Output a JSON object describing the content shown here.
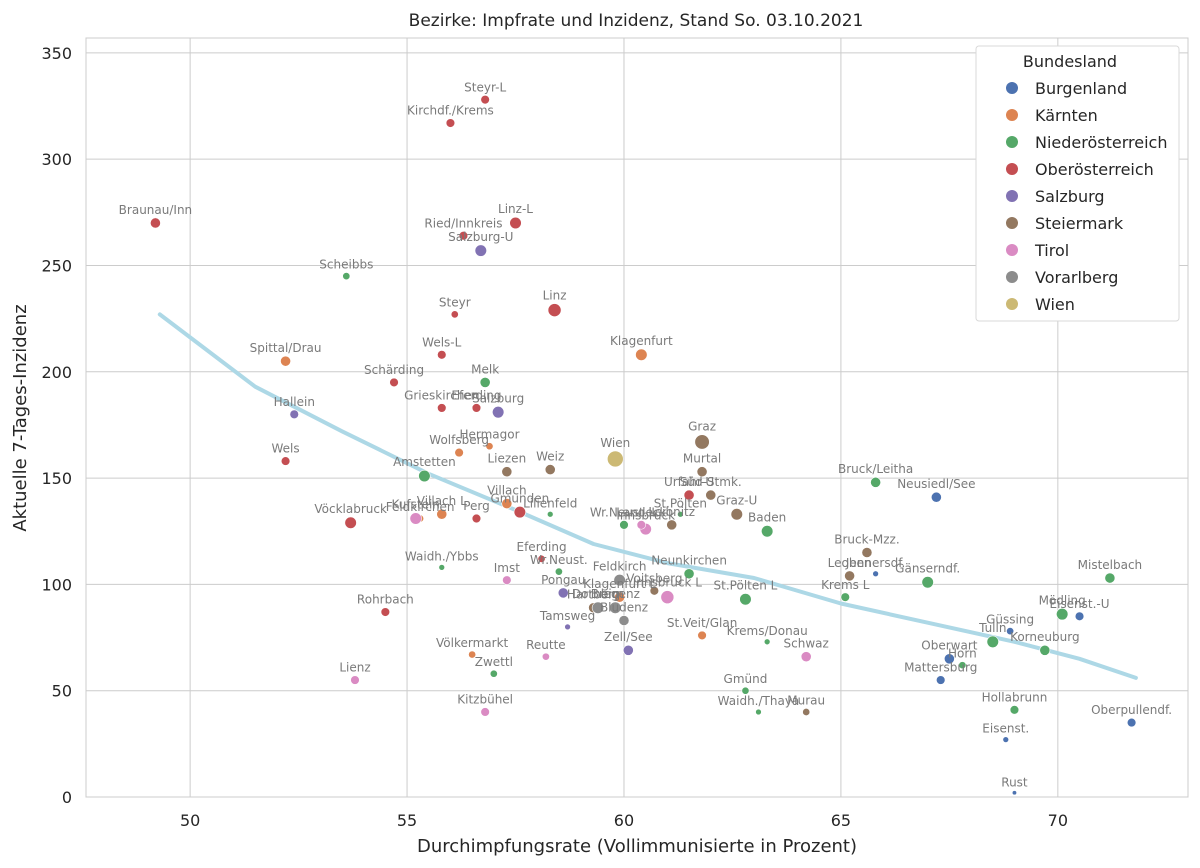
{
  "chart_data": {
    "type": "scatter",
    "title": "Bezirke: Impfrate und Inzidenz, Stand So. 03.10.2021",
    "xlabel": "Durchimpfungsrate (Vollimmunisierte in Prozent)",
    "ylabel": "Aktuelle 7-Tages-Inzidenz",
    "xlim": [
      47.6,
      73.0
    ],
    "ylim": [
      0,
      357
    ],
    "xticks": [
      50,
      55,
      60,
      65,
      70
    ],
    "yticks": [
      0,
      50,
      100,
      150,
      200,
      250,
      300,
      350
    ],
    "grid": true,
    "legend": {
      "title": "Bundesland",
      "placement": "top-right",
      "entries": [
        {
          "name": "Burgenland",
          "color": "#4c72b0"
        },
        {
          "name": "Kärnten",
          "color": "#dd8452"
        },
        {
          "name": "Niederösterreich",
          "color": "#55a868"
        },
        {
          "name": "Oberösterreich",
          "color": "#c44e52"
        },
        {
          "name": "Salzburg",
          "color": "#8172b3"
        },
        {
          "name": "Steiermark",
          "color": "#937860"
        },
        {
          "name": "Tirol",
          "color": "#da8bc3"
        },
        {
          "name": "Vorarlberg",
          "color": "#8c8c8c"
        },
        {
          "name": "Wien",
          "color": "#ccb974"
        }
      ]
    },
    "trend": {
      "color": "#add8e6",
      "points": [
        [
          49.3,
          227
        ],
        [
          51.5,
          193
        ],
        [
          53.5,
          172
        ],
        [
          55.5,
          152
        ],
        [
          57.5,
          135
        ],
        [
          59.3,
          119
        ],
        [
          61.0,
          110
        ],
        [
          63.0,
          103
        ],
        [
          65.0,
          91
        ],
        [
          67.0,
          82
        ],
        [
          69.0,
          73
        ],
        [
          70.5,
          65
        ],
        [
          71.8,
          56
        ]
      ]
    },
    "series": [
      {
        "name": "Burgenland",
        "color": "#4c72b0",
        "points": [
          {
            "label": "Neusiedl/See",
            "x": 67.2,
            "y": 141,
            "size": 5
          },
          {
            "label": "Oberwart",
            "x": 67.5,
            "y": 65,
            "size": 5
          },
          {
            "label": "Mattersburg",
            "x": 67.3,
            "y": 55,
            "size": 4
          },
          {
            "label": "Güssing",
            "x": 68.9,
            "y": 78,
            "size": 3
          },
          {
            "label": "Eisenst.-U",
            "x": 70.5,
            "y": 85,
            "size": 4
          },
          {
            "label": "Oberpullendf.",
            "x": 71.7,
            "y": 35,
            "size": 4
          },
          {
            "label": "Eisenst.",
            "x": 68.8,
            "y": 27,
            "size": 2
          },
          {
            "label": "Rust",
            "x": 69.0,
            "y": 2,
            "size": 1
          },
          {
            "label": "Jennersdf.",
            "x": 65.8,
            "y": 105,
            "size": 2
          }
        ]
      },
      {
        "name": "Kärnten",
        "color": "#dd8452",
        "points": [
          {
            "label": "Spittal/Drau",
            "x": 52.2,
            "y": 205,
            "size": 5
          },
          {
            "label": "Klagenfurt",
            "x": 60.4,
            "y": 208,
            "size": 6
          },
          {
            "label": "Hermagor",
            "x": 56.9,
            "y": 165,
            "size": 3
          },
          {
            "label": "Wolfsberg",
            "x": 56.2,
            "y": 162,
            "size": 4
          },
          {
            "label": "Villach L",
            "x": 55.8,
            "y": 133,
            "size": 5
          },
          {
            "label": "Villach",
            "x": 57.3,
            "y": 138,
            "size": 5
          },
          {
            "label": "Feldkirchen",
            "x": 55.3,
            "y": 131,
            "size": 3
          },
          {
            "label": "Klagenfurt L",
            "x": 59.9,
            "y": 94,
            "size": 5
          },
          {
            "label": "St.Veit/Glan",
            "x": 61.8,
            "y": 76,
            "size": 4
          },
          {
            "label": "Völkermarkt",
            "x": 56.5,
            "y": 67,
            "size": 3
          }
        ]
      },
      {
        "name": "Niederösterreich",
        "color": "#55a868",
        "points": [
          {
            "label": "Scheibbs",
            "x": 53.6,
            "y": 245,
            "size": 3
          },
          {
            "label": "Melk",
            "x": 56.8,
            "y": 195,
            "size": 5
          },
          {
            "label": "Amstetten",
            "x": 55.4,
            "y": 151,
            "size": 6
          },
          {
            "label": "Lilienfeld",
            "x": 58.3,
            "y": 133,
            "size": 2
          },
          {
            "label": "Waidh./Ybbs",
            "x": 55.8,
            "y": 108,
            "size": 2
          },
          {
            "label": "Wr.Neust.",
            "x": 58.5,
            "y": 106,
            "size": 3
          },
          {
            "label": "Zwettl",
            "x": 57.0,
            "y": 58,
            "size": 3
          },
          {
            "label": "Bruck/Leitha",
            "x": 65.8,
            "y": 148,
            "size": 5
          },
          {
            "label": "Neunkirchen",
            "x": 61.5,
            "y": 105,
            "size": 5
          },
          {
            "label": "Wr.Neust. L",
            "x": 60.0,
            "y": 128,
            "size": 4
          },
          {
            "label": "St.Pölten",
            "x": 61.3,
            "y": 133,
            "size": 2
          },
          {
            "label": "Baden",
            "x": 63.3,
            "y": 125,
            "size": 6
          },
          {
            "label": "St.Pölten L",
            "x": 62.8,
            "y": 93,
            "size": 6
          },
          {
            "label": "Krems/Donau",
            "x": 63.3,
            "y": 73,
            "size": 2
          },
          {
            "label": "Krems L",
            "x": 65.1,
            "y": 94,
            "size": 4
          },
          {
            "label": "Gänserndf.",
            "x": 67.0,
            "y": 101,
            "size": 6
          },
          {
            "label": "Tulln",
            "x": 68.5,
            "y": 73,
            "size": 6
          },
          {
            "label": "Mödling",
            "x": 70.1,
            "y": 86,
            "size": 6
          },
          {
            "label": "Korneuburg",
            "x": 69.7,
            "y": 69,
            "size": 5
          },
          {
            "label": "Mistelbach",
            "x": 71.2,
            "y": 103,
            "size": 5
          },
          {
            "label": "Hollabrunn",
            "x": 69.0,
            "y": 41,
            "size": 4
          },
          {
            "label": "Horn",
            "x": 67.8,
            "y": 62,
            "size": 3
          },
          {
            "label": "Gmünd",
            "x": 62.8,
            "y": 50,
            "size": 3
          },
          {
            "label": "Waidh./Thaya",
            "x": 63.1,
            "y": 40,
            "size": 2
          }
        ]
      },
      {
        "name": "Oberösterreich",
        "color": "#c44e52",
        "points": [
          {
            "label": "Braunau/Inn",
            "x": 49.2,
            "y": 270,
            "size": 5
          },
          {
            "label": "Steyr-L",
            "x": 56.8,
            "y": 328,
            "size": 4
          },
          {
            "label": "Kirchdf./Krems",
            "x": 56.0,
            "y": 317,
            "size": 4
          },
          {
            "label": "Linz-L",
            "x": 57.5,
            "y": 270,
            "size": 6
          },
          {
            "label": "Ried/Innkreis",
            "x": 56.3,
            "y": 264,
            "size": 4
          },
          {
            "label": "Linz",
            "x": 58.4,
            "y": 229,
            "size": 7
          },
          {
            "label": "Steyr",
            "x": 56.1,
            "y": 227,
            "size": 3
          },
          {
            "label": "Wels-L",
            "x": 55.8,
            "y": 208,
            "size": 4
          },
          {
            "label": "Schärding",
            "x": 54.7,
            "y": 195,
            "size": 4
          },
          {
            "label": "Grieskirchen",
            "x": 55.8,
            "y": 183,
            "size": 4
          },
          {
            "label": "Eferding",
            "x": 56.6,
            "y": 183,
            "size": 4
          },
          {
            "label": "Wels",
            "x": 52.2,
            "y": 158,
            "size": 4
          },
          {
            "label": "Vöcklabruck",
            "x": 53.7,
            "y": 129,
            "size": 6
          },
          {
            "label": "Perg",
            "x": 56.6,
            "y": 131,
            "size": 4
          },
          {
            "label": "Gmunden",
            "x": 57.6,
            "y": 134,
            "size": 6
          },
          {
            "label": "Urfahr-U",
            "x": 61.5,
            "y": 142,
            "size": 5
          },
          {
            "label": "Rohrbach",
            "x": 54.5,
            "y": 87,
            "size": 4
          },
          {
            "label": "Eferding",
            "x": 58.1,
            "y": 112,
            "size": 3
          }
        ]
      },
      {
        "name": "Salzburg",
        "color": "#8172b3",
        "points": [
          {
            "label": "Salzburg-U",
            "x": 56.7,
            "y": 257,
            "size": 6
          },
          {
            "label": "Salzburg",
            "x": 57.1,
            "y": 181,
            "size": 6
          },
          {
            "label": "Hallein",
            "x": 52.4,
            "y": 180,
            "size": 4
          },
          {
            "label": "Pongau",
            "x": 58.6,
            "y": 96,
            "size": 5
          },
          {
            "label": "Tamsweg",
            "x": 58.7,
            "y": 80,
            "size": 2
          },
          {
            "label": "Zell/See",
            "x": 60.1,
            "y": 69,
            "size": 5
          }
        ]
      },
      {
        "name": "Steiermark",
        "color": "#937860",
        "points": [
          {
            "label": "Graz",
            "x": 61.8,
            "y": 167,
            "size": 8
          },
          {
            "label": "Liezen",
            "x": 57.3,
            "y": 153,
            "size": 5
          },
          {
            "label": "Weiz",
            "x": 58.3,
            "y": 154,
            "size": 5
          },
          {
            "label": "Murtal",
            "x": 61.8,
            "y": 153,
            "size": 5
          },
          {
            "label": "Süd-Stmk.",
            "x": 62.0,
            "y": 142,
            "size": 5
          },
          {
            "label": "Graz-U",
            "x": 62.6,
            "y": 133,
            "size": 6
          },
          {
            "label": "Leibnitz",
            "x": 61.1,
            "y": 128,
            "size": 5
          },
          {
            "label": "Bruck-Mzz.",
            "x": 65.6,
            "y": 115,
            "size": 5
          },
          {
            "label": "Leoben",
            "x": 65.2,
            "y": 104,
            "size": 5
          },
          {
            "label": "Voitsberg",
            "x": 60.7,
            "y": 97,
            "size": 4
          },
          {
            "label": "Hartberg",
            "x": 59.3,
            "y": 89,
            "size": 5
          },
          {
            "label": "Murau",
            "x": 64.2,
            "y": 40,
            "size": 3
          }
        ]
      },
      {
        "name": "Tirol",
        "color": "#da8bc3",
        "points": [
          {
            "label": "Kufstein",
            "x": 55.2,
            "y": 131,
            "size": 6
          },
          {
            "label": "Innsbruck",
            "x": 60.5,
            "y": 126,
            "size": 6
          },
          {
            "label": "Innsbruck L",
            "x": 61.0,
            "y": 94,
            "size": 7
          },
          {
            "label": "Imst",
            "x": 57.3,
            "y": 102,
            "size": 4
          },
          {
            "label": "Schwaz",
            "x": 64.2,
            "y": 66,
            "size": 5
          },
          {
            "label": "Reutte",
            "x": 58.2,
            "y": 66,
            "size": 3
          },
          {
            "label": "Lienz",
            "x": 53.8,
            "y": 55,
            "size": 4
          },
          {
            "label": "Kitzbühel",
            "x": 56.8,
            "y": 40,
            "size": 4
          },
          {
            "label": "Landeck",
            "x": 60.4,
            "y": 128,
            "size": 4
          }
        ]
      },
      {
        "name": "Vorarlberg",
        "color": "#8c8c8c",
        "points": [
          {
            "label": "Feldkirch",
            "x": 59.9,
            "y": 102,
            "size": 6
          },
          {
            "label": "Bregenz",
            "x": 59.8,
            "y": 89,
            "size": 6
          },
          {
            "label": "Dornbirn",
            "x": 59.4,
            "y": 89,
            "size": 6
          },
          {
            "label": "Bludenz",
            "x": 60.0,
            "y": 83,
            "size": 5
          }
        ]
      },
      {
        "name": "Wien",
        "color": "#ccb974",
        "points": [
          {
            "label": "Wien",
            "x": 59.8,
            "y": 159,
            "size": 9
          }
        ]
      }
    ]
  }
}
